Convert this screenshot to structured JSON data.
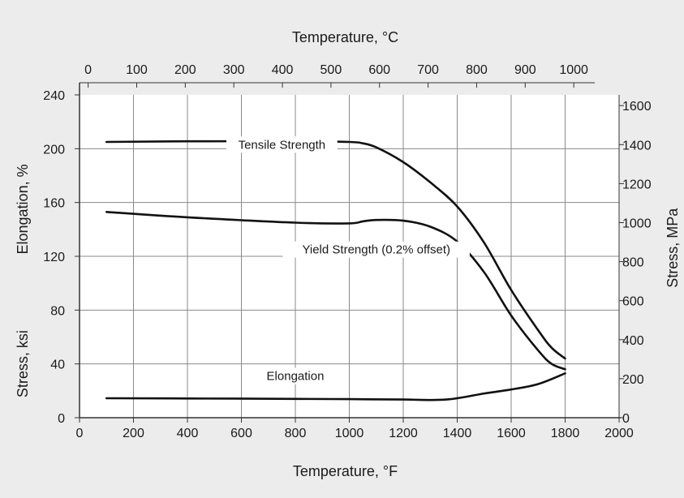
{
  "chart_data": {
    "type": "line",
    "x_bottom": {
      "label": "Temperature, °F",
      "range": [
        0,
        2000
      ],
      "ticks": [
        0,
        200,
        400,
        600,
        800,
        1000,
        1200,
        1400,
        1600,
        1800,
        2000
      ]
    },
    "x_top": {
      "label": "Temperature, °C",
      "ticks": [
        0,
        100,
        200,
        300,
        400,
        500,
        600,
        700,
        800,
        900,
        1000
      ]
    },
    "y_left": {
      "label_outer": "Stress, ksi",
      "label_inner": "Elongation, %",
      "range": [
        0,
        240
      ],
      "ticks": [
        0,
        40,
        80,
        120,
        160,
        200,
        240
      ]
    },
    "y_right": {
      "label": "Stress, MPa",
      "ticks": [
        0,
        200,
        400,
        600,
        800,
        1000,
        1200,
        1400,
        1600
      ]
    },
    "grid": true,
    "series": [
      {
        "name": "Tensile Strength",
        "x": [
          100,
          400,
          800,
          1000,
          1050,
          1100,
          1200,
          1300,
          1400,
          1500,
          1600,
          1700,
          1750,
          1800
        ],
        "y": [
          205,
          205.5,
          205.5,
          205,
          204,
          201,
          190,
          175,
          157,
          130,
          95,
          65,
          52,
          44
        ]
      },
      {
        "name": "Yield Strength (0.2% offset)",
        "x": [
          100,
          400,
          800,
          1000,
          1050,
          1100,
          1200,
          1300,
          1400,
          1500,
          1600,
          1700,
          1750,
          1800
        ],
        "y": [
          153,
          149,
          145,
          144.5,
          146,
          147,
          146.5,
          142,
          131,
          108,
          76,
          50,
          40,
          36
        ]
      },
      {
        "name": "Elongation",
        "x": [
          100,
          400,
          800,
          1000,
          1200,
          1360,
          1500,
          1600,
          1700,
          1800
        ],
        "y": [
          14.5,
          14.3,
          14,
          13.8,
          13.5,
          13.5,
          18,
          21,
          25,
          33
        ]
      }
    ]
  }
}
